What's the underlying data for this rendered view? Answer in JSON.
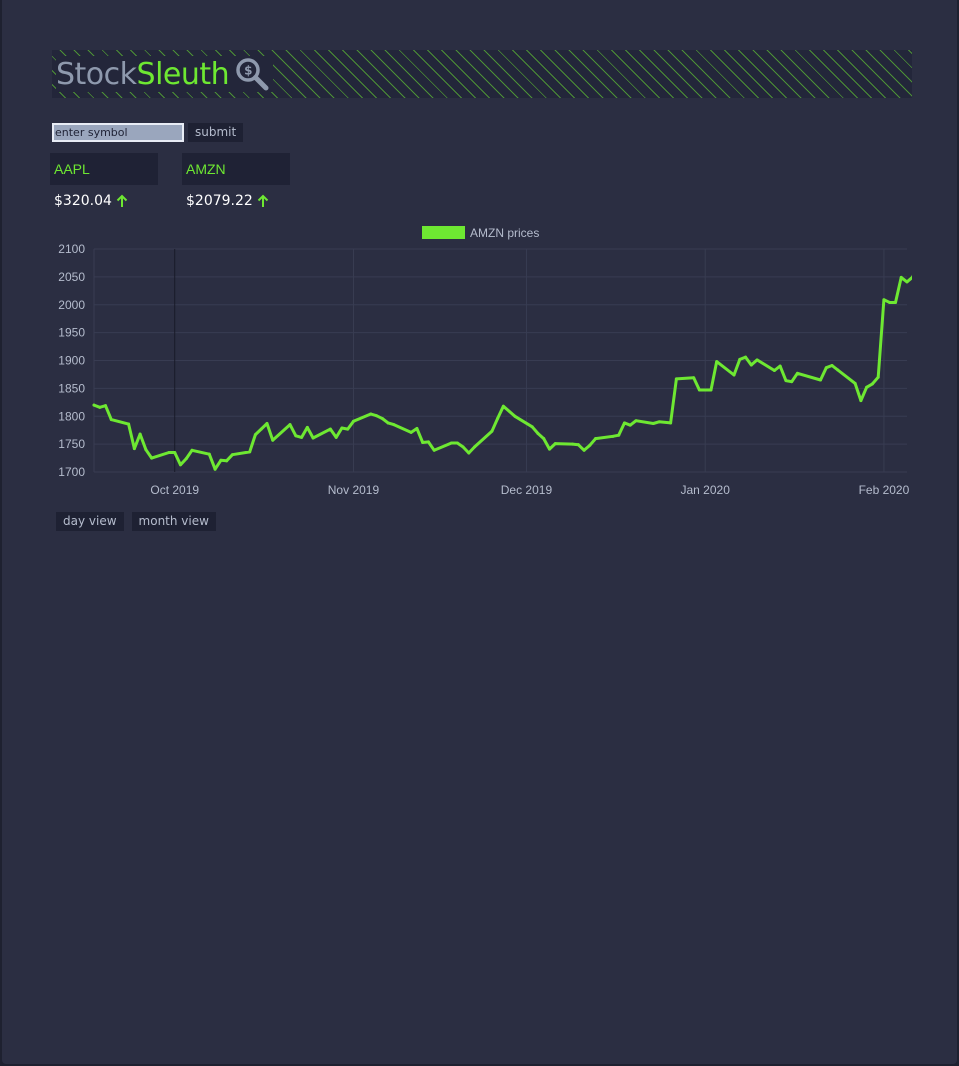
{
  "brand": {
    "part1": "Stock",
    "part2": "Sleuth",
    "icon": "magnifier-dollar-icon"
  },
  "search": {
    "placeholder": "enter symbol",
    "value": "",
    "submit_label": "submit"
  },
  "tickers": [
    {
      "symbol": "AAPL",
      "price": "$320.04",
      "trend": "up"
    },
    {
      "symbol": "AMZN",
      "price": "$2079.22",
      "trend": "up"
    }
  ],
  "views": {
    "day_label": "day view",
    "month_label": "month view"
  },
  "colors": {
    "accent": "#6ee832",
    "background": "#2b2e42",
    "panel": "#1f2235",
    "muted_text": "#b5bccd"
  },
  "chart_data": {
    "type": "line",
    "legend": "AMZN prices",
    "legend_position": "top",
    "ylim": [
      1700,
      2100
    ],
    "yticks": [
      1700,
      1750,
      1800,
      1850,
      1900,
      1950,
      2000,
      2050,
      2100
    ],
    "xlim": [
      "2019-09-17",
      "2020-02-05"
    ],
    "xticks": [
      {
        "date": "2019-10-01",
        "label": "Oct 2019"
      },
      {
        "date": "2019-11-01",
        "label": "Nov 2019"
      },
      {
        "date": "2019-12-01",
        "label": "Dec 2019"
      },
      {
        "date": "2020-01-01",
        "label": "Jan 2020"
      },
      {
        "date": "2020-02-01",
        "label": "Feb 2020"
      }
    ],
    "grid": true,
    "series": [
      {
        "name": "AMZN prices",
        "points": [
          [
            "2019-09-17",
            1820
          ],
          [
            "2019-09-18",
            1816
          ],
          [
            "2019-09-19",
            1819
          ],
          [
            "2019-09-20",
            1794
          ],
          [
            "2019-09-23",
            1786
          ],
          [
            "2019-09-24",
            1742
          ],
          [
            "2019-09-25",
            1768
          ],
          [
            "2019-09-26",
            1740
          ],
          [
            "2019-09-27",
            1725
          ],
          [
            "2019-09-30",
            1735
          ],
          [
            "2019-10-01",
            1735
          ],
          [
            "2019-10-02",
            1713
          ],
          [
            "2019-10-03",
            1724
          ],
          [
            "2019-10-04",
            1739
          ],
          [
            "2019-10-07",
            1732
          ],
          [
            "2019-10-08",
            1705
          ],
          [
            "2019-10-09",
            1721
          ],
          [
            "2019-10-10",
            1720
          ],
          [
            "2019-10-11",
            1731
          ],
          [
            "2019-10-14",
            1736
          ],
          [
            "2019-10-15",
            1767
          ],
          [
            "2019-10-16",
            1777
          ],
          [
            "2019-10-17",
            1787
          ],
          [
            "2019-10-18",
            1757
          ],
          [
            "2019-10-21",
            1785
          ],
          [
            "2019-10-22",
            1765
          ],
          [
            "2019-10-23",
            1762
          ],
          [
            "2019-10-24",
            1780
          ],
          [
            "2019-10-25",
            1761
          ],
          [
            "2019-10-28",
            1777
          ],
          [
            "2019-10-29",
            1762
          ],
          [
            "2019-10-30",
            1779
          ],
          [
            "2019-10-31",
            1777
          ],
          [
            "2019-11-01",
            1791
          ],
          [
            "2019-11-04",
            1804
          ],
          [
            "2019-11-05",
            1801
          ],
          [
            "2019-11-06",
            1796
          ],
          [
            "2019-11-07",
            1788
          ],
          [
            "2019-11-08",
            1785
          ],
          [
            "2019-11-11",
            1771
          ],
          [
            "2019-11-12",
            1778
          ],
          [
            "2019-11-13",
            1753
          ],
          [
            "2019-11-14",
            1754
          ],
          [
            "2019-11-15",
            1739
          ],
          [
            "2019-11-18",
            1752
          ],
          [
            "2019-11-19",
            1752
          ],
          [
            "2019-11-20",
            1745
          ],
          [
            "2019-11-21",
            1734
          ],
          [
            "2019-11-22",
            1745
          ],
          [
            "2019-11-25",
            1773
          ],
          [
            "2019-11-26",
            1796
          ],
          [
            "2019-11-27",
            1818
          ],
          [
            "2019-11-29",
            1800
          ],
          [
            "2019-12-02",
            1781
          ],
          [
            "2019-12-03",
            1769
          ],
          [
            "2019-12-04",
            1760
          ],
          [
            "2019-12-05",
            1741
          ],
          [
            "2019-12-06",
            1751
          ],
          [
            "2019-12-09",
            1750
          ],
          [
            "2019-12-10",
            1749
          ],
          [
            "2019-12-11",
            1739
          ],
          [
            "2019-12-12",
            1748
          ],
          [
            "2019-12-13",
            1760
          ],
          [
            "2019-12-16",
            1764
          ],
          [
            "2019-12-17",
            1766
          ],
          [
            "2019-12-18",
            1788
          ],
          [
            "2019-12-19",
            1784
          ],
          [
            "2019-12-20",
            1792
          ],
          [
            "2019-12-23",
            1787
          ],
          [
            "2019-12-24",
            1790
          ],
          [
            "2019-12-26",
            1788
          ],
          [
            "2019-12-27",
            1867
          ],
          [
            "2019-12-30",
            1869
          ],
          [
            "2019-12-31",
            1847
          ],
          [
            "2020-01-02",
            1847
          ],
          [
            "2020-01-03",
            1898
          ],
          [
            "2020-01-06",
            1874
          ],
          [
            "2020-01-07",
            1902
          ],
          [
            "2020-01-08",
            1906
          ],
          [
            "2020-01-09",
            1892
          ],
          [
            "2020-01-10",
            1901
          ],
          [
            "2020-01-13",
            1882
          ],
          [
            "2020-01-14",
            1890
          ],
          [
            "2020-01-15",
            1864
          ],
          [
            "2020-01-16",
            1862
          ],
          [
            "2020-01-17",
            1877
          ],
          [
            "2020-01-21",
            1865
          ],
          [
            "2020-01-22",
            1887
          ],
          [
            "2020-01-23",
            1891
          ],
          [
            "2020-01-24",
            1883
          ],
          [
            "2020-01-27",
            1859
          ],
          [
            "2020-01-28",
            1828
          ],
          [
            "2020-01-29",
            1852
          ],
          [
            "2020-01-30",
            1858
          ],
          [
            "2020-01-31",
            1870
          ],
          [
            "2020-02-01",
            2009
          ],
          [
            "2020-02-02",
            2004
          ],
          [
            "2020-02-03",
            2004
          ],
          [
            "2020-02-04",
            2049
          ],
          [
            "2020-02-05",
            2041
          ],
          [
            "2020-02-06",
            2050
          ],
          [
            "2020-02-07",
            2079
          ]
        ]
      }
    ]
  }
}
